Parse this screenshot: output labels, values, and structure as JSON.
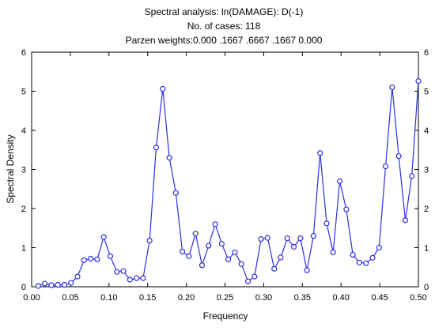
{
  "chart_data": {
    "type": "line",
    "title_lines": [
      "Spectral analysis: ln(DAMAGE): D(-1)",
      "No. of cases: 118",
      "Parzen weights:0.000 .1667 .6667 .1667 0.000"
    ],
    "xlabel": "Frequency",
    "ylabel": "Spectral Density",
    "xlim": [
      0,
      0.5
    ],
    "ylim": [
      0,
      6
    ],
    "x_ticks": [
      "0.00",
      "0.05",
      "0.10",
      "0.15",
      "0.20",
      "0.25",
      "0.30",
      "0.35",
      "0.40",
      "0.45",
      "0.50"
    ],
    "y_ticks": [
      "0",
      "1",
      "2",
      "3",
      "4",
      "5",
      "6"
    ],
    "grid": false,
    "colors": {
      "series": "#2f2fe0"
    },
    "series": [
      {
        "x": [
          0.0085,
          0.0169,
          0.0254,
          0.0339,
          0.0424,
          0.0508,
          0.0593,
          0.0678,
          0.0763,
          0.0847,
          0.0932,
          0.1017,
          0.1102,
          0.1186,
          0.1271,
          0.1356,
          0.1441,
          0.1525,
          0.161,
          0.1695,
          0.178,
          0.1864,
          0.1949,
          0.2034,
          0.2119,
          0.2203,
          0.2288,
          0.2373,
          0.2458,
          0.2542,
          0.2627,
          0.2712,
          0.2797,
          0.2881,
          0.2966,
          0.3051,
          0.3136,
          0.322,
          0.3305,
          0.339,
          0.3475,
          0.3559,
          0.3644,
          0.3729,
          0.3814,
          0.3898,
          0.3983,
          0.4068,
          0.4153,
          0.4237,
          0.4322,
          0.4407,
          0.4492,
          0.4576,
          0.4661,
          0.4746,
          0.4831,
          0.4915,
          0.5
        ],
        "values": [
          0.02,
          0.08,
          0.04,
          0.05,
          0.05,
          0.1,
          0.26,
          0.68,
          0.72,
          0.7,
          1.27,
          0.78,
          0.38,
          0.4,
          0.18,
          0.22,
          0.22,
          1.18,
          3.56,
          5.06,
          3.3,
          2.4,
          0.9,
          0.78,
          1.36,
          0.55,
          1.05,
          1.6,
          1.1,
          0.7,
          0.88,
          0.58,
          0.14,
          0.26,
          1.22,
          1.25,
          0.46,
          0.75,
          1.24,
          1.02,
          1.24,
          0.42,
          1.3,
          3.42,
          1.62,
          0.88,
          2.7,
          1.98,
          0.82,
          0.62,
          0.6,
          0.74,
          1.0,
          3.08,
          5.1,
          3.34,
          1.7,
          2.83,
          5.26
        ]
      }
    ]
  }
}
